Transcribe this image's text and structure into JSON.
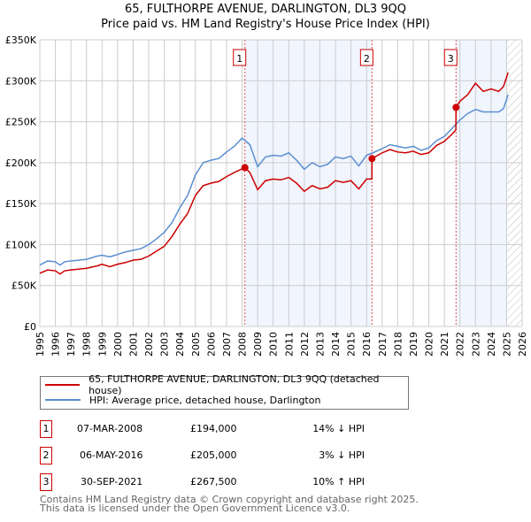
{
  "chart_data": {
    "type": "line",
    "title": "65, FULTHORPE AVENUE, DARLINGTON, DL3 9QQ",
    "subtitle": "Price paid vs. HM Land Registry's House Price Index (HPI)",
    "xlim": [
      1995,
      2026
    ],
    "ylim": [
      0,
      350000
    ],
    "y_ticks": [
      0,
      50000,
      100000,
      150000,
      200000,
      250000,
      300000,
      350000
    ],
    "y_tick_labels": [
      "£0",
      "£50K",
      "£100K",
      "£150K",
      "£200K",
      "£250K",
      "£300K",
      "£350K"
    ],
    "x_ticks": [
      1995,
      1996,
      1997,
      1998,
      1999,
      2000,
      2001,
      2002,
      2003,
      2004,
      2005,
      2006,
      2007,
      2008,
      2009,
      2010,
      2011,
      2012,
      2013,
      2014,
      2015,
      2016,
      2017,
      2018,
      2019,
      2020,
      2021,
      2022,
      2023,
      2024,
      2025,
      2026
    ],
    "grid": true,
    "series": [
      {
        "name": "65, FULTHORPE AVENUE, DARLINGTON, DL3 9QQ (detached house)",
        "color": "#cc0000",
        "x": [
          1995,
          1995.5,
          1996,
          1996.3,
          1996.6,
          1997,
          1998,
          1998.7,
          1999,
          1999.5,
          2000,
          2000.5,
          2001,
          2001.5,
          2002,
          2002.5,
          2003,
          2003.5,
          2004,
          2004.5,
          2005,
          2005.5,
          2006,
          2006.5,
          2007,
          2007.5,
          2008.18,
          2008.5,
          2009,
          2009.5,
          2010,
          2010.5,
          2011,
          2011.5,
          2012,
          2012.5,
          2013,
          2013.5,
          2014,
          2014.5,
          2015,
          2015.5,
          2016,
          2016.34,
          2016.35,
          2017,
          2017.5,
          2018,
          2018.5,
          2019,
          2019.5,
          2020,
          2020.5,
          2021,
          2021.5,
          2021.74,
          2021.75,
          2022,
          2022.5,
          2023,
          2023.5,
          2024,
          2024.5,
          2024.8,
          2025.1
        ],
        "y": [
          65000,
          69000,
          68000,
          64000,
          68000,
          69000,
          71000,
          74000,
          76000,
          73000,
          76000,
          78000,
          81000,
          82000,
          86000,
          92000,
          98000,
          110000,
          125000,
          138000,
          160000,
          172000,
          175000,
          177000,
          183000,
          188000,
          194000,
          188000,
          167000,
          178000,
          180000,
          179000,
          182000,
          175000,
          165000,
          172000,
          168000,
          170000,
          178000,
          176000,
          178000,
          168000,
          180000,
          180000,
          205000,
          212000,
          216000,
          213000,
          212000,
          214000,
          210000,
          212000,
          221000,
          226000,
          235000,
          240000,
          267500,
          275000,
          283000,
          297000,
          287000,
          290000,
          287000,
          293000,
          310000
        ]
      },
      {
        "name": "HPI: Average price, detached house, Darlington",
        "color": "#5b8fd0",
        "x": [
          1995,
          1995.5,
          1996,
          1996.3,
          1996.6,
          1997,
          1998,
          1998.7,
          1999,
          1999.5,
          2000,
          2000.5,
          2001,
          2001.5,
          2002,
          2002.5,
          2003,
          2003.5,
          2004,
          2004.5,
          2005,
          2005.5,
          2006,
          2006.5,
          2007,
          2007.5,
          2008,
          2008.5,
          2009,
          2009.5,
          2010,
          2010.5,
          2011,
          2011.5,
          2012,
          2012.5,
          2013,
          2013.5,
          2014,
          2014.5,
          2015,
          2015.5,
          2016,
          2016.4,
          2017,
          2017.5,
          2018,
          2018.5,
          2019,
          2019.5,
          2020,
          2020.5,
          2021,
          2021.5,
          2022,
          2022.5,
          2023,
          2023.5,
          2024,
          2024.5,
          2024.8,
          2025.1
        ],
        "y": [
          75000,
          80000,
          79000,
          75000,
          79000,
          80000,
          82000,
          86000,
          87000,
          85000,
          88000,
          91000,
          93000,
          95000,
          100000,
          107000,
          115000,
          127000,
          145000,
          160000,
          185000,
          200000,
          203000,
          205000,
          213000,
          220000,
          230000,
          222000,
          195000,
          207000,
          209000,
          208000,
          212000,
          203000,
          192000,
          200000,
          195000,
          198000,
          207000,
          205000,
          208000,
          196000,
          209000,
          212000,
          217000,
          222000,
          220000,
          218000,
          220000,
          215000,
          218000,
          227000,
          232000,
          242000,
          252000,
          260000,
          265000,
          262000,
          262000,
          262000,
          266000,
          283000
        ]
      }
    ],
    "sales": [
      {
        "label": "1",
        "x": 2008.18,
        "y": 194000,
        "date": "07-MAR-2008",
        "price": "£194,000",
        "hpi": "14% ↓ HPI"
      },
      {
        "label": "2",
        "x": 2016.35,
        "y": 205000,
        "date": "06-MAY-2016",
        "price": "£205,000",
        "hpi": "3% ↓ HPI"
      },
      {
        "label": "3",
        "x": 2021.75,
        "y": 267500,
        "date": "30-SEP-2021",
        "price": "£267,500",
        "hpi": "10% ↑ HPI"
      }
    ],
    "shaded_ranges": [
      [
        2008.18,
        2016.35
      ],
      [
        2021.75,
        2025.05
      ]
    ],
    "forecast_hatch_from": 2025.05
  },
  "footer": {
    "line1": "Contains HM Land Registry data © Crown copyright and database right 2025.",
    "line2": "This data is licensed under the Open Government Licence v3.0."
  }
}
